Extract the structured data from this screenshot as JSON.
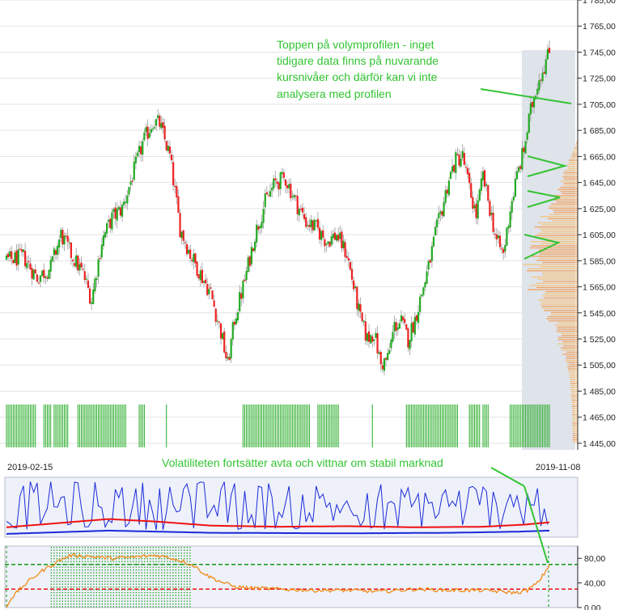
{
  "chart_data": [
    {
      "type": "candlestick",
      "title": "",
      "x_start_label": "2019-02-15",
      "x_end_label": "2019-11-08",
      "ylim": [
        1440,
        1785
      ],
      "y_ticks": [
        "1 445,00",
        "1 465,00",
        "1 485,00",
        "1 505,00",
        "1 525,00",
        "1 545,00",
        "1 565,00",
        "1 585,00",
        "1 605,00",
        "1 625,00",
        "1 645,00",
        "1 665,00",
        "1 685,00",
        "1 705,00",
        "1 725,00",
        "1 745,00",
        "1 765,00",
        "1 785,00"
      ],
      "y_tick_values": [
        1445,
        1465,
        1485,
        1505,
        1525,
        1545,
        1565,
        1585,
        1605,
        1625,
        1645,
        1665,
        1685,
        1705,
        1725,
        1745,
        1765,
        1785
      ],
      "colors": {
        "up": "#22aa22",
        "down": "#ee2222",
        "volume_bar": "#22aa22",
        "volume_profile": "#f0a060",
        "profile_bg": "#dfe3ea"
      },
      "close_keypoints": [
        [
          0,
          1585
        ],
        [
          10,
          1588
        ],
        [
          18,
          1572
        ],
        [
          26,
          1580
        ],
        [
          32,
          1605
        ],
        [
          38,
          1590
        ],
        [
          45,
          1575
        ],
        [
          50,
          1555
        ],
        [
          56,
          1600
        ],
        [
          62,
          1618
        ],
        [
          68,
          1625
        ],
        [
          74,
          1650
        ],
        [
          80,
          1675
        ],
        [
          86,
          1692
        ],
        [
          90,
          1690
        ],
        [
          96,
          1665
        ],
        [
          102,
          1610
        ],
        [
          108,
          1590
        ],
        [
          114,
          1575
        ],
        [
          120,
          1560
        ],
        [
          126,
          1530
        ],
        [
          130,
          1505
        ],
        [
          134,
          1540
        ],
        [
          140,
          1570
        ],
        [
          146,
          1605
        ],
        [
          152,
          1630
        ],
        [
          158,
          1645
        ],
        [
          164,
          1648
        ],
        [
          170,
          1630
        ],
        [
          176,
          1615
        ],
        [
          182,
          1610
        ],
        [
          188,
          1600
        ],
        [
          194,
          1605
        ],
        [
          200,
          1590
        ],
        [
          204,
          1565
        ],
        [
          208,
          1540
        ],
        [
          212,
          1525
        ],
        [
          216,
          1530
        ],
        [
          220,
          1505
        ],
        [
          224,
          1510
        ],
        [
          228,
          1535
        ],
        [
          232,
          1538
        ],
        [
          236,
          1525
        ],
        [
          240,
          1540
        ],
        [
          244,
          1560
        ],
        [
          248,
          1580
        ],
        [
          252,
          1605
        ],
        [
          256,
          1625
        ],
        [
          260,
          1648
        ],
        [
          264,
          1662
        ],
        [
          268,
          1665
        ],
        [
          272,
          1640
        ],
        [
          276,
          1620
        ],
        [
          280,
          1650
        ],
        [
          284,
          1625
        ],
        [
          288,
          1600
        ],
        [
          292,
          1590
        ],
        [
          296,
          1625
        ],
        [
          300,
          1650
        ],
        [
          304,
          1670
        ],
        [
          308,
          1700
        ],
        [
          312,
          1722
        ],
        [
          316,
          1735
        ],
        [
          319,
          1745
        ]
      ],
      "volume_bars_days": [
        0,
        1,
        2,
        3,
        4,
        5,
        6,
        7,
        8,
        9,
        10,
        11,
        12,
        13,
        14,
        15,
        16,
        17,
        22,
        23,
        24,
        25,
        26,
        28,
        29,
        30,
        31,
        32,
        33,
        34,
        35,
        36,
        42,
        43,
        44,
        45,
        46,
        47,
        48,
        49,
        50,
        51,
        52,
        53,
        54,
        55,
        56,
        57,
        58,
        59,
        60,
        61,
        62,
        63,
        64,
        65,
        66,
        67,
        68,
        69,
        70,
        78,
        79,
        80,
        81,
        94,
        139,
        140,
        141,
        142,
        143,
        144,
        145,
        146,
        147,
        148,
        149,
        150,
        151,
        152,
        153,
        154,
        155,
        156,
        157,
        158,
        159,
        160,
        161,
        162,
        163,
        164,
        165,
        166,
        167,
        168,
        169,
        170,
        171,
        172,
        173,
        174,
        175,
        176,
        177,
        178,
        183,
        184,
        185,
        186,
        187,
        188,
        189,
        190,
        191,
        192,
        193,
        194,
        195,
        215,
        235,
        236,
        237,
        238,
        239,
        240,
        241,
        242,
        243,
        244,
        245,
        246,
        247,
        248,
        249,
        250,
        251,
        252,
        253,
        254,
        255,
        256,
        257,
        258,
        259,
        260,
        261,
        262,
        263,
        264,
        265,
        272,
        273,
        274,
        275,
        276,
        277,
        278,
        280,
        281,
        282,
        283,
        296,
        297,
        298,
        299,
        300,
        301,
        302,
        303,
        304,
        305,
        306,
        307,
        308,
        309,
        310,
        311,
        312,
        313,
        314,
        315,
        316,
        317,
        318,
        319
      ]
    },
    {
      "type": "line",
      "series": [
        {
          "role": "blue-oscillator",
          "color": "#1a2ad8",
          "base": 0.55,
          "amp": 0.45
        },
        {
          "role": "red-average",
          "color": "#ee1111",
          "keypoints": [
            [
              0,
              0.15
            ],
            [
              40,
              0.25
            ],
            [
              60,
              0.3
            ],
            [
              90,
              0.25
            ],
            [
              120,
              0.18
            ],
            [
              160,
              0.16
            ],
            [
              200,
              0.17
            ],
            [
              240,
              0.15
            ],
            [
              280,
              0.16
            ],
            [
              305,
              0.2
            ],
            [
              319,
              0.24
            ]
          ]
        },
        {
          "role": "blue-baseline",
          "color": "#1a2ad8",
          "keypoints": [
            [
              0,
              0.03
            ],
            [
              60,
              0.09
            ],
            [
              120,
              0.05
            ],
            [
              200,
              0.04
            ],
            [
              260,
              0.05
            ],
            [
              300,
              0.07
            ],
            [
              319,
              0.09
            ]
          ]
        }
      ]
    },
    {
      "type": "line",
      "ylim": [
        0,
        100
      ],
      "y_ticks": [
        "80,00",
        "40,00",
        "0,00"
      ],
      "y_tick_values": [
        80,
        40,
        0
      ],
      "upper_threshold": 70,
      "lower_threshold": 30,
      "colors": {
        "line": "#f08a14",
        "upper": "#119911",
        "lower": "#ee1111",
        "shade": "#119911"
      },
      "shaded_days": [
        26,
        108
      ],
      "keypoints": [
        [
          0,
          0
        ],
        [
          3,
          15
        ],
        [
          8,
          30
        ],
        [
          14,
          45
        ],
        [
          20,
          58
        ],
        [
          26,
          68
        ],
        [
          32,
          78
        ],
        [
          38,
          85
        ],
        [
          50,
          83
        ],
        [
          62,
          80
        ],
        [
          75,
          82
        ],
        [
          88,
          85
        ],
        [
          96,
          81
        ],
        [
          104,
          75
        ],
        [
          110,
          68
        ],
        [
          118,
          52
        ],
        [
          126,
          42
        ],
        [
          134,
          34
        ],
        [
          142,
          32
        ],
        [
          160,
          30
        ],
        [
          180,
          28
        ],
        [
          200,
          28
        ],
        [
          220,
          26
        ],
        [
          240,
          30
        ],
        [
          260,
          28
        ],
        [
          280,
          28
        ],
        [
          295,
          25
        ],
        [
          300,
          24
        ],
        [
          306,
          28
        ],
        [
          312,
          40
        ],
        [
          316,
          55
        ],
        [
          319,
          70
        ]
      ]
    }
  ],
  "annotations": {
    "top_lines": [
      "Toppen på volymprofilen - inget",
      "tidigare data finns på nuvarande",
      "kursnivåer och därför kan vi inte",
      "analysera med profilen"
    ],
    "middle": "Volatiliteten fortsätter avta och vittnar om stabil marknad",
    "color": "#33c433"
  }
}
